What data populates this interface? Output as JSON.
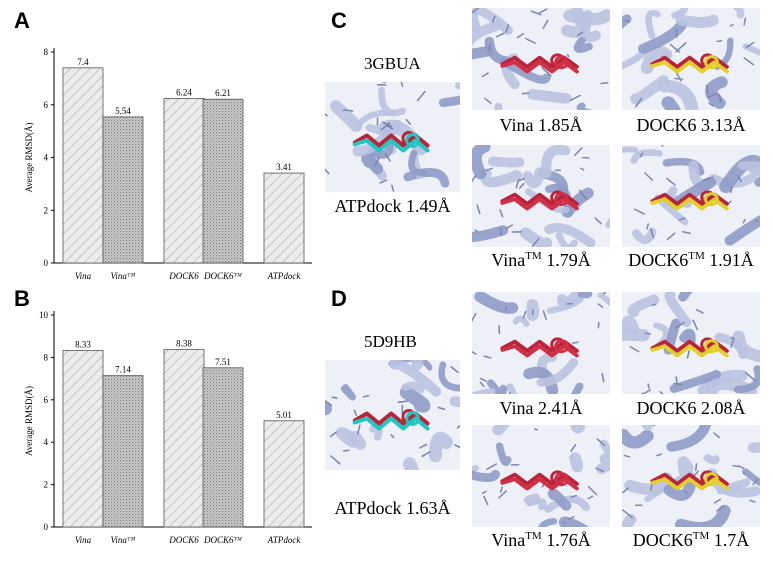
{
  "panels": {
    "A": "A",
    "B": "B",
    "C": "C",
    "D": "D"
  },
  "chart_data": [
    {
      "type": "bar",
      "panel": "A",
      "categories": [
        "Vina",
        "Vinaᵀᴹ",
        "DOCK6",
        "DOCK6ᵀᴹ",
        "ATPdock"
      ],
      "values": [
        7.4,
        5.54,
        6.24,
        6.21,
        3.41
      ],
      "value_labels": [
        "7.4",
        "5.54",
        "6.24",
        "6.21",
        "3.41"
      ],
      "ylabel": "Average RMSD(Å)",
      "ylim": [
        0,
        8
      ],
      "yticks": [
        "0",
        "2",
        "4",
        "6",
        "8"
      ],
      "grid": false
    },
    {
      "type": "bar",
      "panel": "B",
      "categories": [
        "Vina",
        "Vinaᵀᴹ",
        "DOCK6",
        "DOCK6ᵀᴹ",
        "ATPdock"
      ],
      "values": [
        8.33,
        7.14,
        8.38,
        7.51,
        5.01
      ],
      "value_labels": [
        "8.33",
        "7.14",
        "8.38",
        "7.51",
        "5.01"
      ],
      "ylabel": "Average RMSD(Å)",
      "ylim": [
        0,
        10
      ],
      "yticks": [
        "0",
        "2",
        "4",
        "6",
        "8",
        "10"
      ],
      "grid": false
    }
  ],
  "bar_patterns": [
    "diag-sparse",
    "crosshatch",
    "diag-sparse",
    "crosshatch",
    "diag-sparse"
  ],
  "structures_C": {
    "pdb": "3GBUA",
    "ref": {
      "method": "ATPdock",
      "rmsd": "1.49Å"
    },
    "items": [
      {
        "method": "Vina",
        "sup": "",
        "rmsd": "1.85Å",
        "ligand_color": "#d22f47"
      },
      {
        "method": "DOCK6",
        "sup": "",
        "rmsd": "3.13Å",
        "ligand_color": "#e3cf2a"
      },
      {
        "method": "Vina",
        "sup": "TM",
        "rmsd": "1.79Å",
        "ligand_color": "#d22f47"
      },
      {
        "method": "DOCK6",
        "sup": "TM",
        "rmsd": "1.91Å",
        "ligand_color": "#e3cf2a"
      }
    ]
  },
  "structures_D": {
    "pdb": "5D9HB",
    "ref": {
      "method": "ATPdock",
      "rmsd": "1.63Å"
    },
    "items": [
      {
        "method": "Vina",
        "sup": "",
        "rmsd": "2.41Å",
        "ligand_color": "#d22f47"
      },
      {
        "method": "DOCK6",
        "sup": "",
        "rmsd": "2.08Å",
        "ligand_color": "#e3cf2a"
      },
      {
        "method": "Vina",
        "sup": "TM",
        "rmsd": "1.76Å",
        "ligand_color": "#d22f47"
      },
      {
        "method": "DOCK6",
        "sup": "TM",
        "rmsd": "1.7Å",
        "ligand_color": "#e3cf2a"
      }
    ]
  },
  "colors": {
    "protein": "#b9c2e0",
    "protein_dark": "#8f9bc6",
    "native_ligand": "#b8243a",
    "atpdock_ligand": "#22c6c0",
    "bar_edge": "#555555"
  }
}
